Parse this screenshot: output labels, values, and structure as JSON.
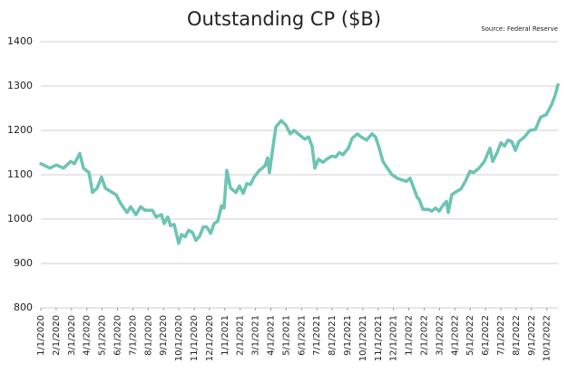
{
  "chart_data": {
    "type": "line",
    "title": "Outstanding CP ($B)",
    "source": "Source: Federal Reserve",
    "color": "#6cc4b4",
    "grid": true,
    "x": [
      0,
      0.59,
      1.01,
      1.48,
      1.95,
      2.19,
      2.54,
      2.78,
      3.14,
      3.37,
      3.67,
      3.96,
      4.2,
      4.56,
      4.91,
      5.21,
      5.62,
      5.86,
      6.21,
      6.51,
      6.8,
      7.28,
      7.51,
      7.87,
      8.05,
      8.28,
      8.46,
      8.7,
      8.99,
      9.17,
      9.41,
      9.64,
      9.88,
      10.12,
      10.36,
      10.59,
      10.83,
      11.07,
      11.3,
      11.54,
      11.78,
      11.95,
      12.13,
      12.37,
      12.72,
      12.96,
      13.2,
      13.43,
      13.67,
      13.91,
      14.26,
      14.62,
      14.79,
      14.91,
      15.15,
      15.33,
      15.68,
      15.98,
      16.27,
      16.51,
      16.86,
      17.22,
      17.46,
      17.69,
      17.87,
      18.11,
      18.4,
      18.64,
      18.99,
      19.23,
      19.47,
      19.7,
      20.06,
      20.3,
      20.65,
      20.89,
      21.24,
      21.6,
      21.83,
      22.07,
      22.31,
      22.66,
      22.9,
      23.25,
      23.61,
      23.85,
      24.08,
      24.32,
      24.56,
      24.67,
      24.91,
      25.27,
      25.5,
      25.74,
      25.98,
      26.21,
      26.45,
      26.57,
      26.8,
      27.1,
      27.4,
      27.69,
      27.99,
      28.22,
      28.58,
      28.93,
      29.29,
      29.47,
      29.76,
      30,
      30.24,
      30.47,
      30.71,
      30.95,
      31.18,
      31.54,
      31.89,
      32.25,
      32.6,
      32.96,
      33.31,
      33.55,
      33.73
    ],
    "values": [
      1125,
      1115,
      1122,
      1115,
      1130,
      1125,
      1148,
      1115,
      1105,
      1060,
      1070,
      1095,
      1070,
      1062,
      1055,
      1035,
      1015,
      1028,
      1010,
      1028,
      1020,
      1020,
      1005,
      1010,
      990,
      1005,
      985,
      988,
      945,
      965,
      960,
      975,
      970,
      952,
      962,
      982,
      982,
      968,
      990,
      995,
      1030,
      1025,
      1110,
      1070,
      1060,
      1075,
      1058,
      1080,
      1078,
      1095,
      1110,
      1120,
      1138,
      1105,
      1165,
      1208,
      1222,
      1212,
      1192,
      1200,
      1190,
      1180,
      1185,
      1165,
      1115,
      1135,
      1128,
      1135,
      1142,
      1140,
      1150,
      1145,
      1160,
      1182,
      1192,
      1185,
      1178,
      1192,
      1185,
      1160,
      1130,
      1112,
      1100,
      1092,
      1088,
      1085,
      1092,
      1070,
      1048,
      1045,
      1022,
      1022,
      1018,
      1025,
      1018,
      1030,
      1040,
      1015,
      1055,
      1062,
      1068,
      1085,
      1108,
      1105,
      1115,
      1130,
      1160,
      1130,
      1150,
      1172,
      1165,
      1178,
      1175,
      1155,
      1175,
      1185,
      1200,
      1202,
      1230,
      1235,
      1258,
      1280,
      1303
    ],
    "xlim": [
      0,
      33.73
    ],
    "ylim": [
      800,
      1400
    ],
    "yticks": [
      800,
      900,
      1000,
      1100,
      1200,
      1300,
      1400
    ],
    "xticks": [
      {
        "value": 0,
        "label": "1/1/2020"
      },
      {
        "value": 1,
        "label": "2/1/2020"
      },
      {
        "value": 2,
        "label": "3/1/2020"
      },
      {
        "value": 3,
        "label": "4/1/2020"
      },
      {
        "value": 4,
        "label": "5/1/2020"
      },
      {
        "value": 5,
        "label": "6/1/2020"
      },
      {
        "value": 6,
        "label": "7/1/2020"
      },
      {
        "value": 7,
        "label": "8/1/2020"
      },
      {
        "value": 8,
        "label": "9/1/2020"
      },
      {
        "value": 9,
        "label": "10/1/2020"
      },
      {
        "value": 10,
        "label": "11/1/2020"
      },
      {
        "value": 11,
        "label": "12/1/2020"
      },
      {
        "value": 12,
        "label": "1/1/2021"
      },
      {
        "value": 13,
        "label": "2/1/2021"
      },
      {
        "value": 14,
        "label": "3/1/2021"
      },
      {
        "value": 15,
        "label": "4/1/2021"
      },
      {
        "value": 16,
        "label": "5/1/2021"
      },
      {
        "value": 17,
        "label": "6/1/2021"
      },
      {
        "value": 18,
        "label": "7/1/2021"
      },
      {
        "value": 19,
        "label": "8/1/2021"
      },
      {
        "value": 20,
        "label": "9/1/2021"
      },
      {
        "value": 21,
        "label": "10/1/2021"
      },
      {
        "value": 22,
        "label": "11/1/2021"
      },
      {
        "value": 23,
        "label": "12/1/2021"
      },
      {
        "value": 24,
        "label": "1/1/2022"
      },
      {
        "value": 25,
        "label": "2/1/2022"
      },
      {
        "value": 26,
        "label": "3/1/2022"
      },
      {
        "value": 27,
        "label": "4/1/2022"
      },
      {
        "value": 28,
        "label": "5/1/2022"
      },
      {
        "value": 29,
        "label": "6/1/2022"
      },
      {
        "value": 30,
        "label": "7/1/2022"
      },
      {
        "value": 31,
        "label": "8/1/2022"
      },
      {
        "value": 32,
        "label": "9/1/2022"
      },
      {
        "value": 33,
        "label": "10/1/2022"
      }
    ]
  }
}
